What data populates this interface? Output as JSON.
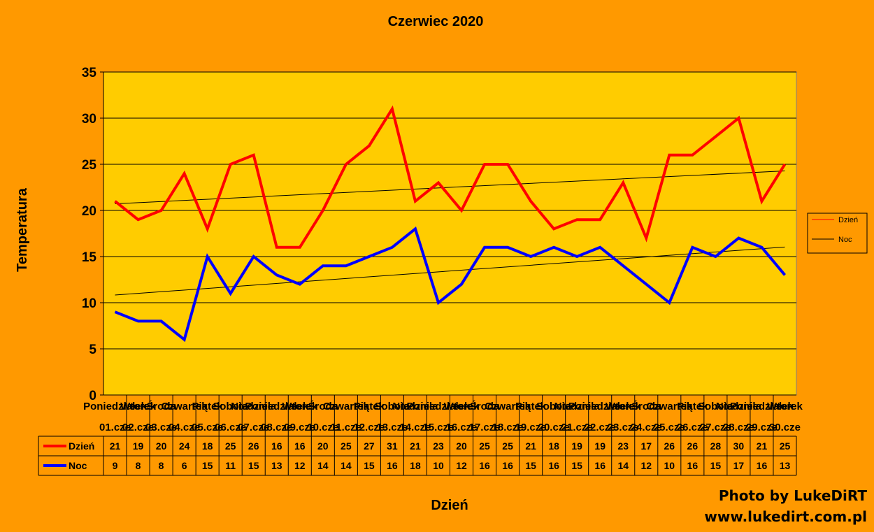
{
  "chart_data": {
    "type": "line",
    "title": "Czerwiec 2020",
    "xlabel": "Dzień",
    "ylabel": "Temperatura",
    "ylim": [
      0,
      35
    ],
    "yticks": [
      0,
      5,
      10,
      15,
      20,
      25,
      30,
      35
    ],
    "grid": true,
    "legend_position": "right",
    "trendlines": true,
    "categories_weekday": [
      "Poniedziałek",
      "Wtorek",
      "Środa",
      "Czwartek",
      "Piątek",
      "Sobota",
      "Niedziela",
      "Poniedziałek",
      "Wtorek",
      "Środa",
      "Czwartek",
      "Piątek",
      "Sobota",
      "Niedziela",
      "Poniedziałek",
      "Wtorek",
      "Środa",
      "Czwartek",
      "Piątek",
      "Sobota",
      "Niedziela",
      "Poniedziałek",
      "Wtorek",
      "Środa",
      "Czwartek",
      "Piątek",
      "Sobota",
      "Niedziela",
      "Poniedziałek",
      "Wtorek"
    ],
    "categories_date": [
      "01.cze",
      "02.cze",
      "03.cze",
      "04.cze",
      "05.cze",
      "06.cze",
      "07.cze",
      "08.cze",
      "09.cze",
      "10.cze",
      "11.cze",
      "12.cze",
      "13.cze",
      "14.cze",
      "15.cze",
      "16.cze",
      "17.cze",
      "18.cze",
      "19.cze",
      "20.cze",
      "21.cze",
      "22.cze",
      "23.cze",
      "24.cze",
      "25.cze",
      "26.cze",
      "27.cze",
      "28.cze",
      "29.cze",
      "30.cze"
    ],
    "series": [
      {
        "name": "Dzień",
        "color": "#ff0000",
        "values": [
          21,
          19,
          20,
          24,
          18,
          25,
          26,
          16,
          16,
          20,
          25,
          27,
          31,
          21,
          23,
          20,
          25,
          25,
          21,
          18,
          19,
          19,
          23,
          17,
          26,
          26,
          28,
          30,
          21,
          25
        ]
      },
      {
        "name": "Noc",
        "color": "#0000ff",
        "values": [
          9,
          8,
          8,
          6,
          15,
          11,
          15,
          13,
          12,
          14,
          14,
          15,
          16,
          18,
          10,
          12,
          16,
          16,
          15,
          16,
          15,
          16,
          14,
          12,
          10,
          16,
          15,
          17,
          16,
          13
        ]
      }
    ]
  },
  "credit": {
    "line1": "Photo by LukeDiRT",
    "line2": "www.lukedirt.com.pl"
  },
  "colors": {
    "background": "#ff9900",
    "plot_area": "#ffcc00",
    "gridline": "#000000",
    "trendline": "#000000"
  }
}
